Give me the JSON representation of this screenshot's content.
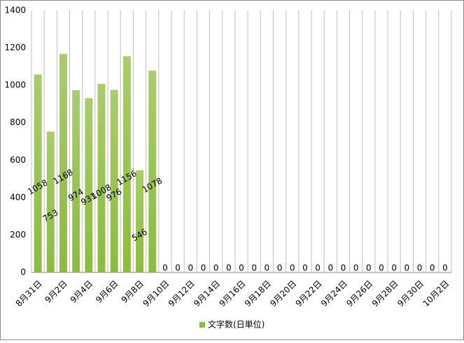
{
  "chart_data": {
    "type": "bar",
    "categories": [
      "8月31日",
      null,
      "9月2日",
      null,
      "9月4日",
      null,
      "9月6日",
      null,
      "9月8日",
      null,
      "9月10日",
      null,
      "9月12日",
      null,
      "9月14日",
      null,
      "9月16日",
      null,
      "9月18日",
      null,
      "9月20日",
      null,
      "9月22日",
      null,
      "9月24日",
      null,
      "9月26日",
      null,
      "9月28日",
      null,
      "9月30日",
      null,
      "10月2日"
    ],
    "series": [
      {
        "name": "文字数(日単位)",
        "color": "#8dbb3c",
        "values": [
          1058,
          753,
          1168,
          974,
          931,
          1008,
          976,
          1156,
          546,
          1078,
          0,
          0,
          0,
          0,
          0,
          0,
          0,
          0,
          0,
          0,
          0,
          0,
          0,
          0,
          0,
          0,
          0,
          0,
          0,
          0,
          0,
          0,
          0
        ]
      }
    ],
    "ylim": [
      0,
      1400
    ],
    "yticks": [
      0,
      200,
      400,
      600,
      800,
      1000,
      1200,
      1400
    ],
    "grid": true,
    "legend": "bottom"
  }
}
